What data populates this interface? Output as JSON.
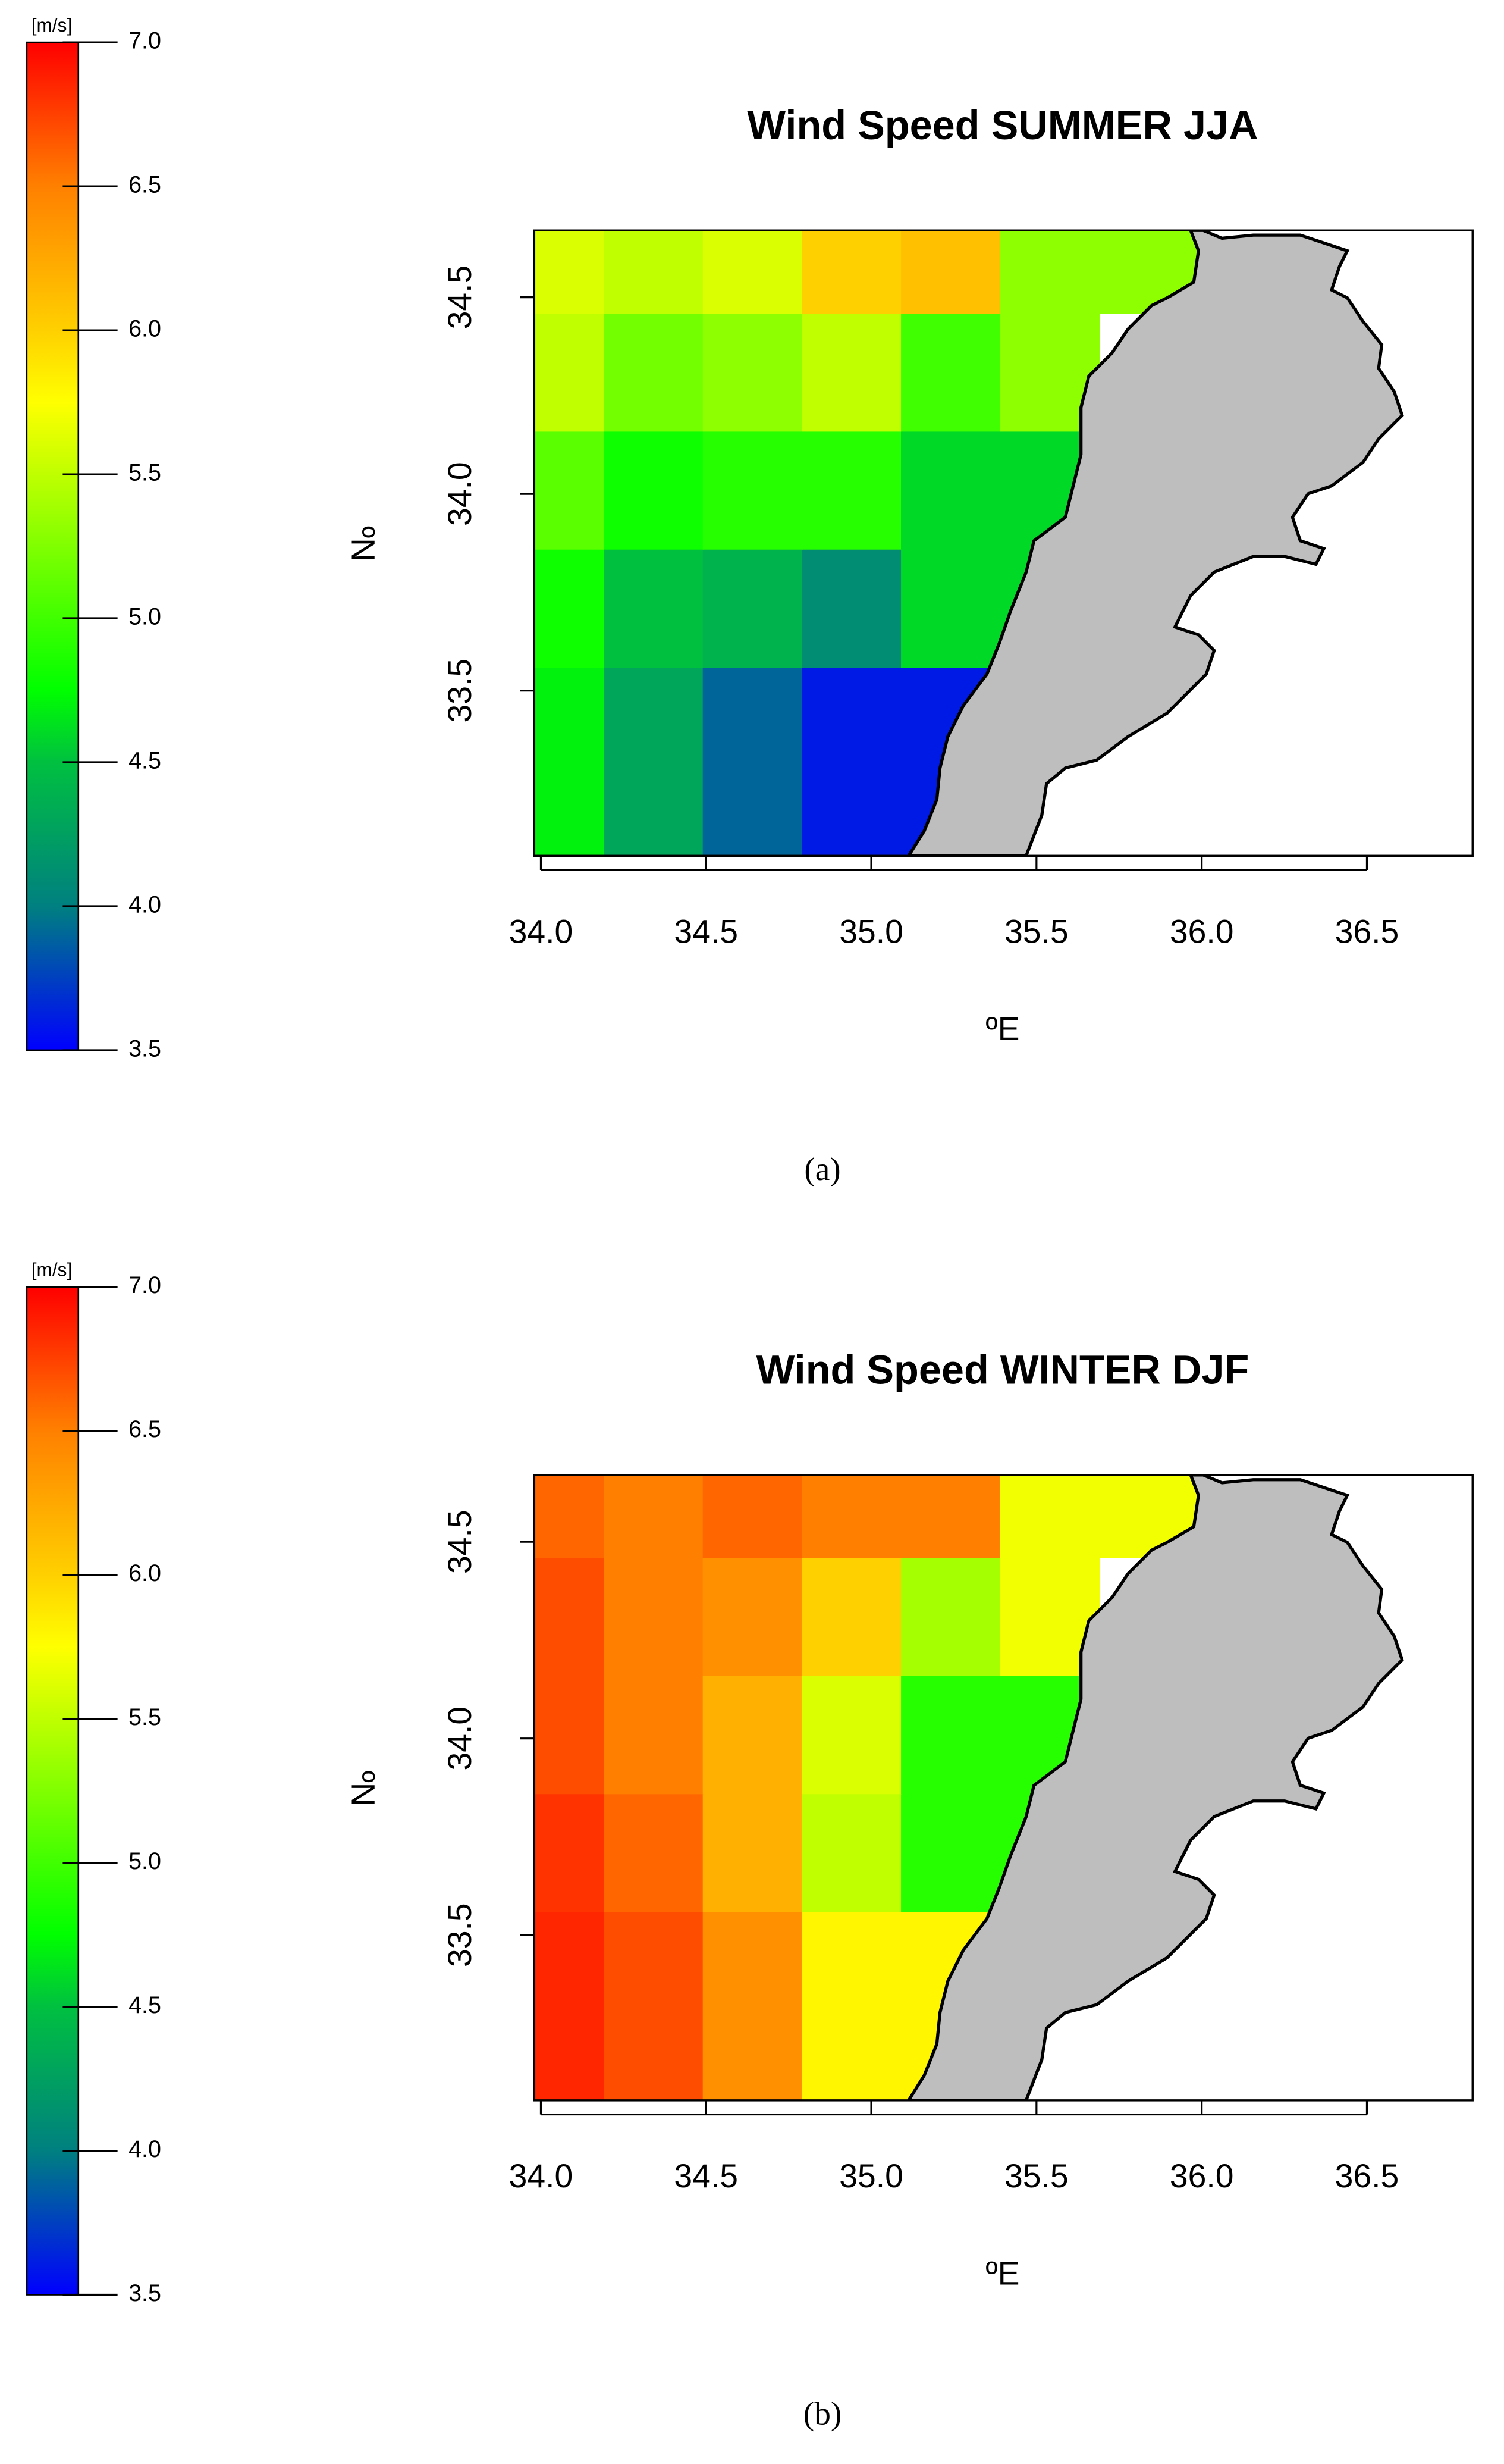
{
  "chart_data": [
    {
      "type": "heatmap",
      "title": "Wind Speed SUMMER JJA",
      "xlabel": "ºE",
      "ylabel": "ºN",
      "caption": "(a)",
      "x_edges": [
        33.98,
        34.19,
        34.49,
        34.79,
        35.09,
        35.39,
        35.69,
        35.99
      ],
      "y_edges": [
        33.08,
        33.56,
        33.86,
        34.16,
        34.46,
        34.67
      ],
      "values": [
        [
          4.7,
          4.3,
          3.9,
          3.6,
          3.6,
          null,
          null
        ],
        [
          4.8,
          4.5,
          4.4,
          4.1,
          4.6,
          4.6,
          null
        ],
        [
          5.1,
          4.8,
          4.9,
          4.9,
          4.6,
          4.6,
          null
        ],
        [
          5.5,
          5.2,
          5.3,
          5.5,
          5.0,
          5.3,
          null
        ],
        [
          5.6,
          5.5,
          5.6,
          6.0,
          6.1,
          5.3,
          5.3
        ]
      ],
      "xlim": [
        33.98,
        36.82
      ],
      "ylim": [
        33.08,
        34.67
      ],
      "xticks": [
        {
          "value": 34,
          "label": "34.0"
        },
        34.5,
        {
          "value": 35,
          "label": "35.0"
        },
        35.5,
        {
          "value": 36,
          "label": "36.0"
        },
        36.5
      ],
      "yticks": [
        33.5,
        {
          "value": 34,
          "label": "34.0"
        },
        34.5
      ],
      "land_color": "#bebebe",
      "colorbar": {
        "label": "[m/s]",
        "lim": [
          3.5,
          7
        ],
        "ticks": [
          {
            "value": 3.5,
            "label": "3.5"
          },
          {
            "value": 4,
            "label": "4.0"
          },
          {
            "value": 4.5,
            "label": "4.5"
          },
          {
            "value": 5,
            "label": "5.0"
          },
          {
            "value": 5.5,
            "label": "5.5"
          },
          {
            "value": 6,
            "label": "6.0"
          },
          {
            "value": 6.5,
            "label": "6.5"
          },
          {
            "value": 7,
            "label": "7.0"
          }
        ],
        "colorscale": [
          [
            3.5,
            "#0000ff"
          ],
          [
            4.0,
            "#008080"
          ],
          [
            4.5,
            "#00c040"
          ],
          [
            4.75,
            "#00ff00"
          ],
          [
            5.25,
            "#80ff00"
          ],
          [
            5.75,
            "#ffff00"
          ],
          [
            6.0,
            "#ffd000"
          ],
          [
            6.5,
            "#ff8000"
          ],
          [
            7.0,
            "#ff0000"
          ]
        ]
      }
    },
    {
      "type": "heatmap",
      "title": "Wind Speed WINTER DJF",
      "xlabel": "ºE",
      "ylabel": "ºN",
      "caption": "(b)",
      "x_edges": [
        33.98,
        34.19,
        34.49,
        34.79,
        35.09,
        35.39,
        35.69,
        35.99
      ],
      "y_edges": [
        33.08,
        33.56,
        33.86,
        34.16,
        34.46,
        34.67
      ],
      "values": [
        [
          6.85,
          6.7,
          6.4,
          5.8,
          5.8,
          null,
          null
        ],
        [
          6.8,
          6.6,
          6.2,
          5.5,
          4.9,
          4.9,
          null
        ],
        [
          6.7,
          6.5,
          6.2,
          5.6,
          4.9,
          4.9,
          null
        ],
        [
          6.7,
          6.5,
          6.4,
          6.0,
          5.4,
          5.7,
          null
        ],
        [
          6.6,
          6.5,
          6.6,
          6.5,
          6.5,
          5.7,
          5.7
        ]
      ],
      "xlim": [
        33.98,
        36.82
      ],
      "ylim": [
        33.08,
        34.67
      ],
      "xticks": [
        {
          "value": 34,
          "label": "34.0"
        },
        34.5,
        {
          "value": 35,
          "label": "35.0"
        },
        35.5,
        {
          "value": 36,
          "label": "36.0"
        },
        36.5
      ],
      "yticks": [
        33.5,
        {
          "value": 34,
          "label": "34.0"
        },
        34.5
      ],
      "land_color": "#bebebe",
      "colorbar": {
        "label": "[m/s]",
        "lim": [
          3.5,
          7
        ],
        "ticks": [
          {
            "value": 3.5,
            "label": "3.5"
          },
          {
            "value": 4,
            "label": "4.0"
          },
          {
            "value": 4.5,
            "label": "4.5"
          },
          {
            "value": 5,
            "label": "5.0"
          },
          {
            "value": 5.5,
            "label": "5.5"
          },
          {
            "value": 6,
            "label": "6.0"
          },
          {
            "value": 6.5,
            "label": "6.5"
          },
          {
            "value": 7,
            "label": "7.0"
          }
        ],
        "colorscale": [
          [
            3.5,
            "#0000ff"
          ],
          [
            4.0,
            "#008080"
          ],
          [
            4.5,
            "#00c040"
          ],
          [
            4.75,
            "#00ff00"
          ],
          [
            5.25,
            "#80ff00"
          ],
          [
            5.75,
            "#ffff00"
          ],
          [
            6.0,
            "#ffd000"
          ],
          [
            6.5,
            "#ff8000"
          ],
          [
            7.0,
            "#ff0000"
          ]
        ]
      }
    }
  ]
}
